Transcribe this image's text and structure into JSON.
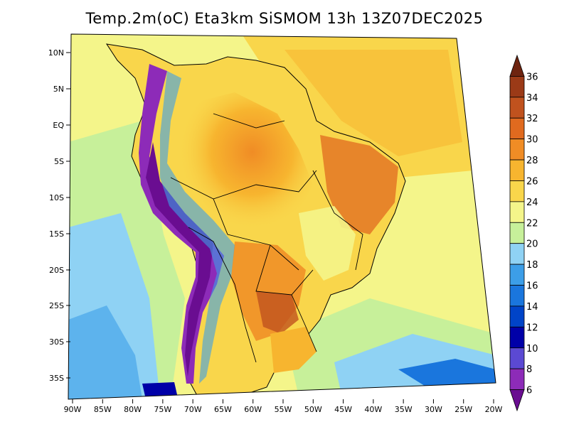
{
  "title": "Temp.2m(oC) Eta3km SiSMOM 13h 13Z07DEC2025",
  "map": {
    "lat_ticks": [
      "10N",
      "5N",
      "EQ",
      "5S",
      "10S",
      "15S",
      "20S",
      "25S",
      "30S",
      "35S"
    ],
    "lon_ticks": [
      "90W",
      "85W",
      "80W",
      "75W",
      "70W",
      "65W",
      "60W",
      "55W",
      "50W",
      "45W",
      "40W",
      "35W",
      "30W",
      "25W",
      "20W"
    ]
  },
  "colorbar": {
    "levels": [
      "6",
      "8",
      "10",
      "12",
      "14",
      "16",
      "18",
      "20",
      "22",
      "24",
      "26",
      "28",
      "30",
      "32",
      "34",
      "36"
    ],
    "colors": [
      "#6a0d91",
      "#8d2bb8",
      "#5b49d3",
      "#0000a8",
      "#0044c8",
      "#1a76dd",
      "#3c9ee8",
      "#8fd2f4",
      "#c7f09a",
      "#f4f58a",
      "#f9d64b",
      "#f7b52f",
      "#f08c25",
      "#e06a1f",
      "#c0521e",
      "#9b3a17",
      "#6e2410"
    ]
  }
}
